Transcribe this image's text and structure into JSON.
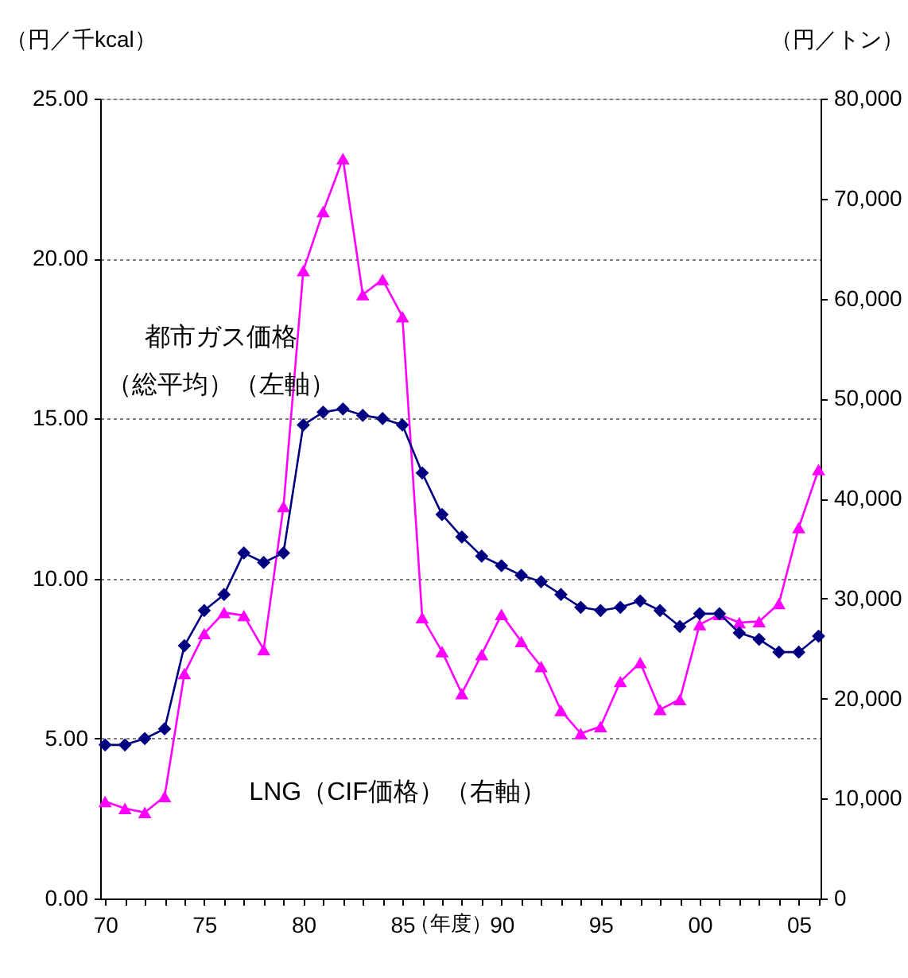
{
  "chart_data": {
    "type": "line",
    "x": [
      1970,
      1971,
      1972,
      1973,
      1974,
      1975,
      1976,
      1977,
      1978,
      1979,
      1980,
      1981,
      1982,
      1983,
      1984,
      1985,
      1986,
      1987,
      1988,
      1989,
      1990,
      1991,
      1992,
      1993,
      1994,
      1995,
      1996,
      1997,
      1998,
      1999,
      2000,
      2001,
      2002,
      2003,
      2004,
      2005,
      2006
    ],
    "series": [
      {
        "name": "都市ガス価格（総平均）（左軸）",
        "color": "#000080",
        "marker": "diamond",
        "values": [
          4.8,
          4.8,
          5.0,
          5.3,
          7.9,
          9.0,
          9.5,
          10.8,
          10.5,
          10.8,
          14.8,
          15.2,
          15.3,
          15.1,
          15.0,
          14.8,
          13.3,
          12.0,
          11.3,
          10.7,
          10.4,
          10.1,
          9.9,
          9.5,
          9.1,
          9.0,
          9.1,
          9.3,
          9.0,
          8.5,
          8.9,
          8.9,
          8.3,
          8.1,
          7.7,
          7.7,
          8.2
        ]
      },
      {
        "name": "LNG（CIF価格）（右軸）",
        "color": "#ff00ff",
        "marker": "triangle",
        "axis": "y2",
        "values": [
          9700,
          9000,
          8600,
          10200,
          22500,
          26500,
          28600,
          28300,
          24900,
          39200,
          62800,
          68700,
          74000,
          60400,
          61900,
          58200,
          28100,
          24700,
          20500,
          24400,
          28400,
          25700,
          23200,
          18800,
          16500,
          17200,
          21700,
          23600,
          18900,
          19900,
          27400,
          28400,
          27600,
          27700,
          29500,
          37100,
          42900
        ]
      }
    ],
    "ylabel": "（円／千kcal）",
    "y2label": "（円／トン）",
    "xlabel": "（年度）",
    "xlim": [
      1969.75,
      2006.1
    ],
    "xticks": [
      {
        "value": 1970,
        "label": "70"
      },
      {
        "value": 1971,
        "label": null
      },
      {
        "value": 1972,
        "label": null
      },
      {
        "value": 1973,
        "label": null
      },
      {
        "value": 1974,
        "label": null
      },
      {
        "value": 1975,
        "label": "75"
      },
      {
        "value": 1976,
        "label": null
      },
      {
        "value": 1977,
        "label": null
      },
      {
        "value": 1978,
        "label": null
      },
      {
        "value": 1979,
        "label": null
      },
      {
        "value": 1980,
        "label": "80"
      },
      {
        "value": 1981,
        "label": null
      },
      {
        "value": 1982,
        "label": null
      },
      {
        "value": 1983,
        "label": null
      },
      {
        "value": 1984,
        "label": null
      },
      {
        "value": 1985,
        "label": "85"
      },
      {
        "value": 1986,
        "label": null
      },
      {
        "value": 1987,
        "label": null
      },
      {
        "value": 1988,
        "label": null
      },
      {
        "value": 1989,
        "label": null
      },
      {
        "value": 1990,
        "label": "90"
      },
      {
        "value": 1991,
        "label": null
      },
      {
        "value": 1992,
        "label": null
      },
      {
        "value": 1993,
        "label": null
      },
      {
        "value": 1994,
        "label": null
      },
      {
        "value": 1995,
        "label": "95"
      },
      {
        "value": 1996,
        "label": null
      },
      {
        "value": 1997,
        "label": null
      },
      {
        "value": 1998,
        "label": null
      },
      {
        "value": 1999,
        "label": null
      },
      {
        "value": 2000,
        "label": "00"
      },
      {
        "value": 2001,
        "label": null
      },
      {
        "value": 2002,
        "label": null
      },
      {
        "value": 2003,
        "label": null
      },
      {
        "value": 2004,
        "label": null
      },
      {
        "value": 2005,
        "label": "05"
      },
      {
        "value": 2006,
        "label": null
      }
    ],
    "ylim": [
      0,
      25
    ],
    "yticks": [
      {
        "value": 0,
        "label": "0.00"
      },
      {
        "value": 5,
        "label": "5.00"
      },
      {
        "value": 10,
        "label": "10.00"
      },
      {
        "value": 15,
        "label": "15.00"
      },
      {
        "value": 20,
        "label": "20.00"
      },
      {
        "value": 25,
        "label": "25.00"
      }
    ],
    "y2lim": [
      0,
      80000
    ],
    "y2ticks": [
      {
        "value": 0,
        "label": "0"
      },
      {
        "value": 10000,
        "label": "10,000"
      },
      {
        "value": 20000,
        "label": "20,000"
      },
      {
        "value": 30000,
        "label": "30,000"
      },
      {
        "value": 40000,
        "label": "40,000"
      },
      {
        "value": 50000,
        "label": "50,000"
      },
      {
        "value": 60000,
        "label": "60,000"
      },
      {
        "value": 70000,
        "label": "70,000"
      },
      {
        "value": 80000,
        "label": "80,000"
      }
    ],
    "grid": "y",
    "line_style": "solid"
  }
}
